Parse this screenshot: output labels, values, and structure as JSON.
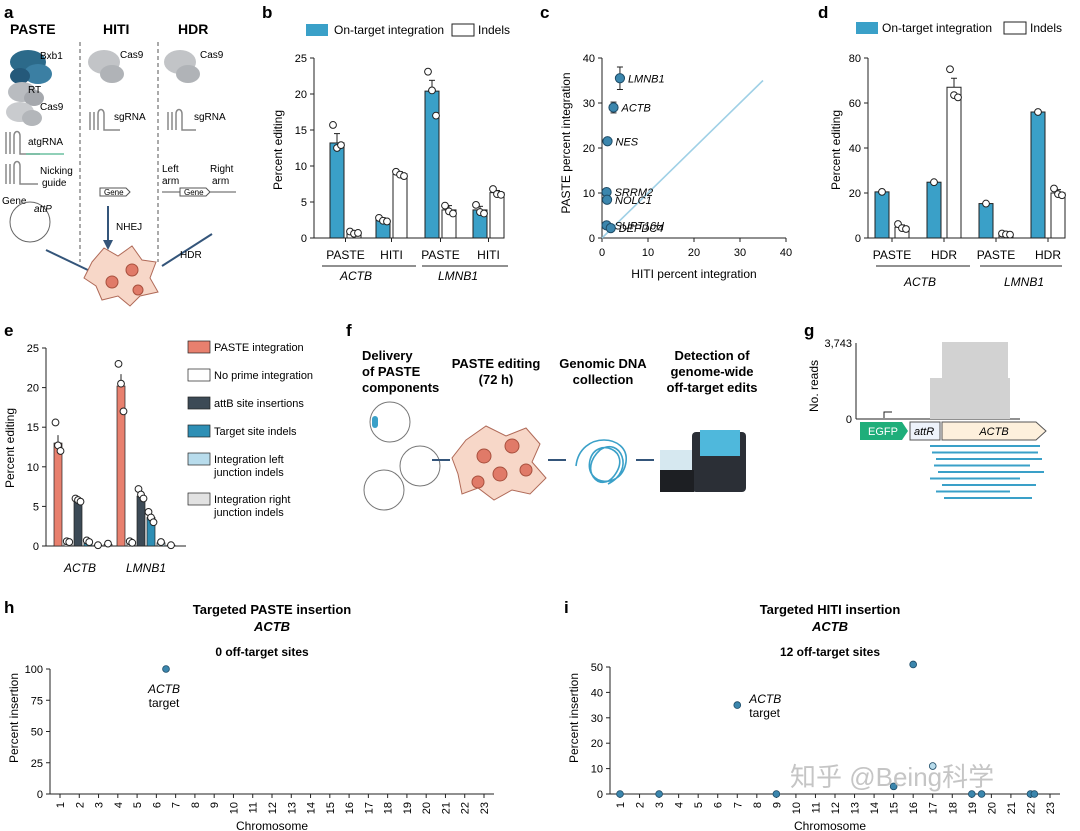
{
  "colors": {
    "blue": "#3aa0c8",
    "blue_dark": "#1f6f8f",
    "salmon": "#e8806e",
    "dark": "#3c4a56",
    "teal": "#2e8fb5",
    "light_blue": "#b8dcec",
    "light_grey": "#e2e2e2",
    "green": "#1fae7a",
    "cream": "#fdf0dc"
  },
  "panel_letters": {
    "a": "a",
    "b": "b",
    "c": "c",
    "d": "d",
    "e": "e",
    "f": "f",
    "g": "g",
    "h": "h",
    "i": "i"
  },
  "panel_a": {
    "headers": [
      "PASTE",
      "HITI",
      "HDR"
    ],
    "paste_labels": {
      "bxb1": "Bxb1",
      "rt": "RT",
      "cas9": "Cas9",
      "atgrna": "atgRNA",
      "nicking1": "Nicking",
      "nicking2": "guide",
      "gene": "Gene",
      "attp": "attP"
    },
    "hiti_labels": {
      "cas9": "Cas9",
      "sgrna": "sgRNA",
      "gene": "Gene",
      "nhej": "NHEJ"
    },
    "hdr_labels": {
      "cas9": "Cas9",
      "sgrna": "sgRNA",
      "left1": "Left",
      "left2": "arm",
      "right1": "Right",
      "right2": "arm",
      "gene": "Gene",
      "hdr": "HDR"
    }
  },
  "chart_data": [
    {
      "id": "b",
      "type": "bar",
      "ylabel": "Percent editing",
      "ylim": [
        0,
        25
      ],
      "yticks": [
        0,
        5,
        10,
        15,
        20,
        25
      ],
      "legend": [
        "On-target integration",
        "Indels"
      ],
      "group_labels": [
        "PASTE",
        "HITI",
        "PASTE",
        "HITI"
      ],
      "gene_labels": [
        "ACTB",
        "LMNB1"
      ],
      "bars": [
        {
          "series": "On-target integration",
          "value": 13.2,
          "err": 1.3,
          "points": [
            15.7,
            12.5,
            12.9
          ]
        },
        {
          "series": "Indels",
          "value": 0.7,
          "err": 0.2,
          "points": [
            0.9,
            0.6,
            0.7
          ]
        },
        {
          "series": "On-target integration",
          "value": 2.5,
          "err": 0.3,
          "points": [
            2.8,
            2.4,
            2.3
          ]
        },
        {
          "series": "Indels",
          "value": 8.9,
          "err": 0.3,
          "points": [
            9.2,
            8.8,
            8.6
          ]
        },
        {
          "series": "On-target integration",
          "value": 20.4,
          "err": 1.5,
          "points": [
            23.1,
            20.5,
            17.0
          ]
        },
        {
          "series": "Indels",
          "value": 3.9,
          "err": 0.6,
          "points": [
            4.5,
            3.7,
            3.4
          ]
        },
        {
          "series": "On-target integration",
          "value": 3.9,
          "err": 0.5,
          "points": [
            4.6,
            3.6,
            3.4
          ]
        },
        {
          "series": "Indels",
          "value": 6.3,
          "err": 0.3,
          "points": [
            6.8,
            6.1,
            6.0
          ]
        }
      ]
    },
    {
      "id": "c",
      "type": "scatter",
      "xlabel": "HITI percent integration",
      "ylabel": "PASTE percent integration",
      "xlim": [
        0,
        40
      ],
      "ylim": [
        0,
        40
      ],
      "xticks": [
        0,
        10,
        20,
        30,
        40
      ],
      "yticks": [
        0,
        10,
        20,
        30,
        40
      ],
      "points": [
        {
          "label": "LMNB1",
          "x": 3.9,
          "y": 35.5,
          "err": 2.5
        },
        {
          "label": "ACTB",
          "x": 2.5,
          "y": 29.0,
          "err": 1.2
        },
        {
          "label": "NES",
          "x": 1.2,
          "y": 21.5
        },
        {
          "label": "SRRM2",
          "x": 1.0,
          "y": 10.2
        },
        {
          "label": "NOLC1",
          "x": 1.1,
          "y": 8.5
        },
        {
          "label": "SUPT16H",
          "x": 1.0,
          "y": 2.8
        },
        {
          "label": "DEPDC4",
          "x": 1.9,
          "y": 2.2
        }
      ]
    },
    {
      "id": "d",
      "type": "bar",
      "ylabel": "Percent editing",
      "ylim": [
        0,
        80
      ],
      "yticks": [
        0,
        20,
        40,
        60,
        80
      ],
      "legend": [
        "On-target integration",
        "Indels"
      ],
      "group_labels": [
        "PASTE",
        "HDR",
        "PASTE",
        "HDR"
      ],
      "gene_labels": [
        "ACTB",
        "LMNB1"
      ],
      "bars": [
        {
          "series": "On-target integration",
          "value": 20.5,
          "err": 0,
          "points": [
            20.5
          ]
        },
        {
          "series": "Indels",
          "value": 4.8,
          "err": 1.0,
          "points": [
            6.2,
            4.4,
            4.0
          ]
        },
        {
          "series": "On-target integration",
          "value": 24.8,
          "err": 0,
          "points": [
            24.8
          ]
        },
        {
          "series": "Indels",
          "value": 67.0,
          "err": 4.0,
          "points": [
            75.0,
            63.5,
            62.5
          ]
        },
        {
          "series": "On-target integration",
          "value": 15.3,
          "err": 0,
          "points": [
            15.3
          ]
        },
        {
          "series": "Indels",
          "value": 1.7,
          "err": 0.3,
          "points": [
            2.0,
            1.6,
            1.5
          ]
        },
        {
          "series": "On-target integration",
          "value": 56.0,
          "err": 0,
          "points": [
            56.0
          ]
        },
        {
          "series": "Indels",
          "value": 20.0,
          "err": 1.5,
          "points": [
            22.0,
            19.5,
            19.0
          ]
        }
      ]
    },
    {
      "id": "e",
      "type": "bar",
      "ylabel": "Percent editing",
      "ylim": [
        0,
        25
      ],
      "yticks": [
        0,
        5,
        10,
        15,
        20,
        25
      ],
      "legend": [
        "PASTE integration",
        "No prime integration",
        "attB site insertions",
        "Target site indels",
        "Integration left junction indels",
        "Integration right junction indels"
      ],
      "gene_labels": [
        "ACTB",
        "LMNB1"
      ],
      "groups": [
        [
          {
            "series": 0,
            "value": 13.0,
            "err": 1.0,
            "points": [
              15.6,
              12.7,
              12.0
            ]
          },
          {
            "series": 1,
            "value": 0.5,
            "err": 0.1,
            "points": [
              0.6,
              0.5
            ]
          },
          {
            "series": 2,
            "value": 5.7,
            "err": 0.3,
            "points": [
              6.0,
              5.8,
              5.6
            ]
          },
          {
            "series": 3,
            "value": 0.5,
            "err": 0.1,
            "points": [
              0.7,
              0.5
            ]
          },
          {
            "series": 4,
            "value": 0.1,
            "err": 0,
            "points": [
              0.1
            ]
          },
          {
            "series": 5,
            "value": 0.2,
            "err": 0,
            "points": [
              0.3
            ]
          }
        ],
        [
          {
            "series": 0,
            "value": 20.2,
            "err": 1.5,
            "points": [
              23.0,
              20.5,
              17.0
            ]
          },
          {
            "series": 1,
            "value": 0.5,
            "err": 0.1,
            "points": [
              0.6,
              0.4
            ]
          },
          {
            "series": 2,
            "value": 6.3,
            "err": 0.6,
            "points": [
              7.2,
              6.5,
              6.0
            ]
          },
          {
            "series": 3,
            "value": 3.6,
            "err": 0.5,
            "points": [
              4.3,
              3.6,
              3.0
            ]
          },
          {
            "series": 4,
            "value": 0.4,
            "err": 0,
            "points": [
              0.5
            ]
          },
          {
            "series": 5,
            "value": 0.1,
            "err": 0,
            "points": [
              0.1
            ]
          }
        ]
      ]
    },
    {
      "id": "h",
      "type": "scatter",
      "title1": "Targeted PASTE insertion",
      "title2": "ACTB",
      "subtitle": "0 off-target sites",
      "xlabel": "Chromosome",
      "ylabel": "Percent insertion",
      "ylim": [
        0,
        100
      ],
      "yticks": [
        0,
        25,
        50,
        75,
        100
      ],
      "categories": [
        "1",
        "2",
        "3",
        "4",
        "5",
        "6",
        "7",
        "8",
        "9",
        "10",
        "11",
        "12",
        "13",
        "14",
        "15",
        "16",
        "17",
        "18",
        "19",
        "20",
        "21",
        "22",
        "23"
      ],
      "points": [
        {
          "chromosome": 6.5,
          "y": 100,
          "annotation1": "ACTB",
          "annotation2": "target"
        }
      ]
    },
    {
      "id": "i",
      "type": "scatter",
      "title1": "Targeted HITI insertion",
      "title2": "ACTB",
      "subtitle": "12 off-target sites",
      "xlabel": "Chromosome",
      "ylabel": "Percent insertion",
      "ylim": [
        0,
        50
      ],
      "yticks": [
        0,
        10,
        20,
        30,
        40,
        50
      ],
      "categories": [
        "1",
        "2",
        "3",
        "4",
        "5",
        "6",
        "7",
        "8",
        "9",
        "10",
        "11",
        "12",
        "13",
        "14",
        "15",
        "16",
        "17",
        "18",
        "19",
        "20",
        "21",
        "22",
        "23"
      ],
      "points": [
        {
          "chromosome": 1,
          "y": 0
        },
        {
          "chromosome": 3,
          "y": 0
        },
        {
          "chromosome": 7,
          "y": 35,
          "annotation1": "ACTB",
          "annotation2": "target"
        },
        {
          "chromosome": 9,
          "y": 0
        },
        {
          "chromosome": 15,
          "y": 3
        },
        {
          "chromosome": 16,
          "y": 51
        },
        {
          "chromosome": 17,
          "y": 11
        },
        {
          "chromosome": 19,
          "y": 0
        },
        {
          "chromosome": 19.5,
          "y": 0
        },
        {
          "chromosome": 22,
          "y": 0
        },
        {
          "chromosome": 22.2,
          "y": 0
        }
      ]
    }
  ],
  "panel_f": {
    "steps": [
      "Delivery",
      "of PASTE",
      "components",
      "PASTE editing",
      "(72 h)",
      "Genomic DNA",
      "collection",
      "Detection of",
      "genome-wide",
      "off-target edits"
    ]
  },
  "panel_g": {
    "ylabel": "No. reads",
    "ymax": "3,743",
    "ymin": "0",
    "elements": [
      "EGFP",
      "attR",
      "ACTB"
    ]
  },
  "watermark": "知乎 @Being科学"
}
